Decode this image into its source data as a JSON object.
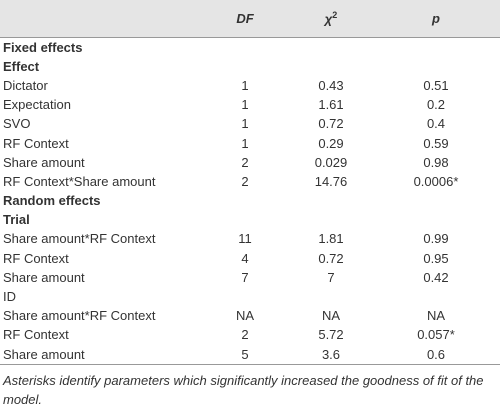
{
  "table": {
    "header": [
      {
        "text": "DF"
      },
      {
        "text": "χ",
        "sup": "2"
      },
      {
        "text": "p"
      }
    ],
    "rows": [
      {
        "label": "Fixed effects",
        "bold": true,
        "cells": []
      },
      {
        "label": "Effect",
        "bold": true,
        "cells": []
      },
      {
        "label": "Dictator",
        "cells": [
          "1",
          "0.43",
          "0.51"
        ]
      },
      {
        "label": "Expectation",
        "cells": [
          "1",
          "1.61",
          "0.2"
        ]
      },
      {
        "label": "SVO",
        "cells": [
          "1",
          "0.72",
          "0.4"
        ]
      },
      {
        "label": "RF Context",
        "cells": [
          "1",
          "0.29",
          "0.59"
        ]
      },
      {
        "label": "Share amount",
        "cells": [
          "2",
          "0.029",
          "0.98"
        ]
      },
      {
        "label": "RF Context*Share amount",
        "cells": [
          "2",
          "14.76",
          "0.0006*"
        ]
      },
      {
        "label": "Random effects",
        "bold": true,
        "cells": []
      },
      {
        "label": "Trial",
        "bold": true,
        "cells": []
      },
      {
        "label": "Share amount*RF Context",
        "cells": [
          "11",
          "1.81",
          "0.99"
        ]
      },
      {
        "label": "RF Context",
        "cells": [
          "4",
          "0.72",
          "0.95"
        ]
      },
      {
        "label": "Share amount",
        "cells": [
          "7",
          "7",
          "0.42"
        ]
      },
      {
        "label": "ID",
        "cells": []
      },
      {
        "label": "Share amount*RF Context",
        "cells": [
          "NA",
          "NA",
          "NA"
        ]
      },
      {
        "label": "RF Context",
        "cells": [
          "2",
          "5.72",
          "0.057*"
        ]
      },
      {
        "label": "Share amount",
        "cells": [
          "5",
          "3.6",
          "0.6"
        ]
      }
    ]
  },
  "footnote": "Asterisks identify parameters which significantly increased the goodness of fit of the model."
}
